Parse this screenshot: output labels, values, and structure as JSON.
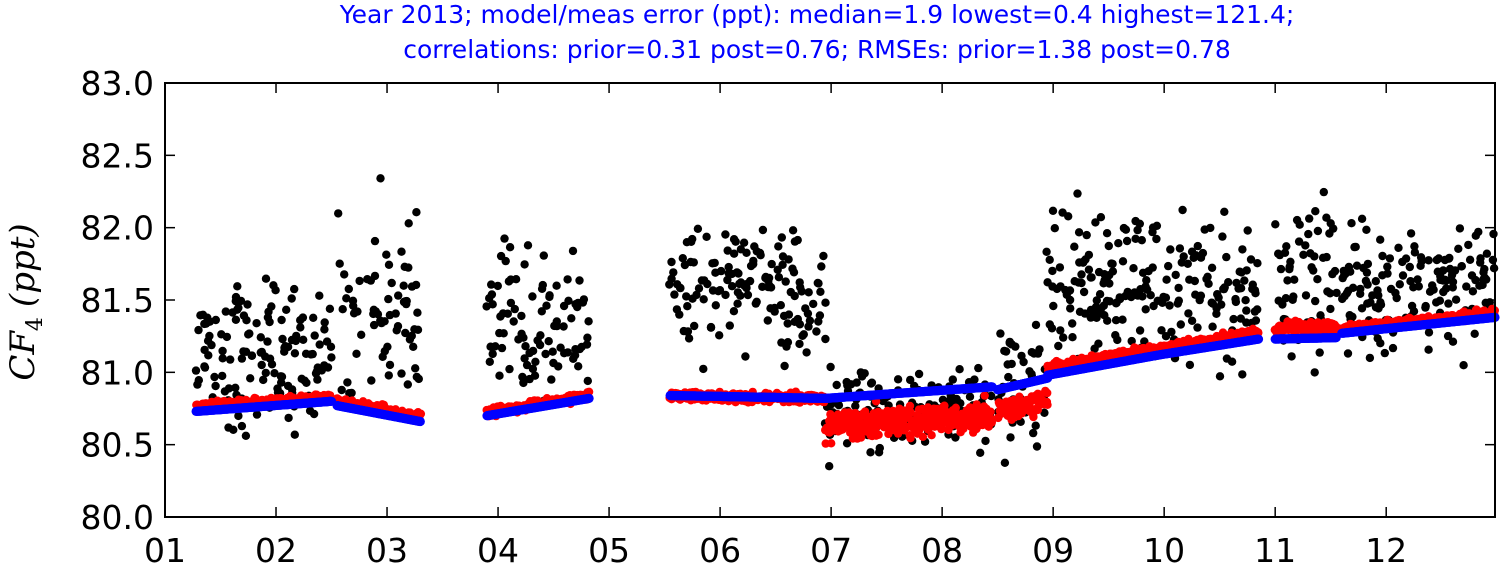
{
  "chart_data": {
    "type": "scatter",
    "title_line1": "Year 2013; model/meas error (ppt): median=1.9 lowest=0.4 highest=121.4;",
    "title_line2": "correlations: prior=0.31 post=0.76; RMSEs: prior=1.38 post=0.78",
    "ylabel_main": "CF",
    "ylabel_sub": "4",
    "ylabel_unit": "(ppt)",
    "xlim": [
      1,
      12.98
    ],
    "ylim": [
      80.0,
      83.0
    ],
    "x_tick_values": [
      1,
      2,
      3,
      4,
      5,
      6,
      7,
      8,
      9,
      10,
      11,
      12
    ],
    "x_tick_labels": [
      "01",
      "02",
      "03",
      "04",
      "05",
      "06",
      "07",
      "08",
      "09",
      "10",
      "11",
      "12"
    ],
    "y_tick_values": [
      80.0,
      80.5,
      81.0,
      81.5,
      82.0,
      82.5,
      83.0
    ],
    "y_tick_labels": [
      "80.0",
      "80.5",
      "81.0",
      "81.5",
      "82.0",
      "82.5",
      "83.0"
    ],
    "grid": false,
    "colors": {
      "measured": "#000000",
      "posterior": "#ff0000",
      "prior": "#0000ff"
    },
    "segments": [
      {
        "x0": 1.28,
        "x1": 2.5,
        "prior": [
          80.73,
          80.8
        ],
        "post_offset": 0.03,
        "meas_center": 81.1,
        "meas_spread": 0.55
      },
      {
        "x0": 2.55,
        "x1": 3.3,
        "prior": [
          80.77,
          80.66
        ],
        "post_offset": 0.03,
        "meas_center": 81.4,
        "meas_spread": 0.7
      },
      {
        "x0": 3.9,
        "x1": 4.82,
        "prior": [
          80.7,
          80.82
        ],
        "post_offset": 0.02,
        "meas_center": 81.35,
        "meas_spread": 0.5
      },
      {
        "x0": 5.55,
        "x1": 6.95,
        "prior": [
          80.84,
          80.82
        ],
        "post_offset": 0.0,
        "meas_center": 81.55,
        "meas_spread": 0.45
      },
      {
        "x0": 6.95,
        "x1": 8.45,
        "prior": [
          80.82,
          80.9
        ],
        "post_offset": -0.2,
        "meas_center": 80.75,
        "meas_spread": 0.3
      },
      {
        "x0": 8.5,
        "x1": 8.95,
        "prior": [
          80.88,
          80.96
        ],
        "post_offset": -0.15,
        "meas_center": 80.9,
        "meas_spread": 0.5
      },
      {
        "x0": 8.95,
        "x1": 9.95,
        "prior": [
          80.98,
          81.12
        ],
        "post_offset": 0.05,
        "meas_center": 81.6,
        "meas_spread": 0.55
      },
      {
        "x0": 9.95,
        "x1": 10.85,
        "prior": [
          81.12,
          81.23
        ],
        "post_offset": 0.04,
        "meas_center": 81.55,
        "meas_spread": 0.55
      },
      {
        "x0": 11.0,
        "x1": 11.55,
        "prior": [
          81.23,
          81.24
        ],
        "post_offset": 0.08,
        "meas_center": 81.7,
        "meas_spread": 0.6
      },
      {
        "x0": 11.6,
        "x1": 12.98,
        "prior": [
          81.27,
          81.38
        ],
        "post_offset": 0.03,
        "meas_center": 81.6,
        "meas_spread": 0.5
      }
    ]
  }
}
